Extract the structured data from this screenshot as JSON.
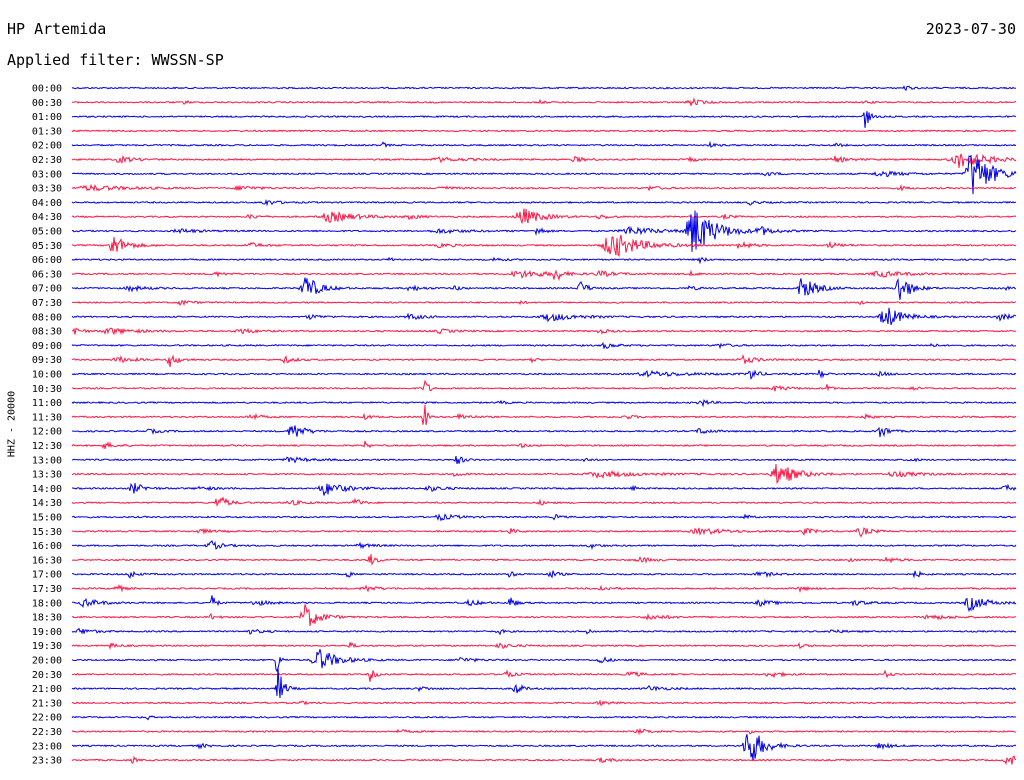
{
  "header": {
    "station": "HP Artemida",
    "date": "2023-07-30",
    "filter_text": "Applied filter: WWSSN-SP"
  },
  "chart_data": {
    "type": "line",
    "title": "HP Artemida",
    "ylabel": "HHZ - 20000",
    "colors": [
      "#0000e6",
      "#ff1744"
    ],
    "rows": [
      {
        "label": "00:00",
        "events": [
          [
            905,
            3,
            4
          ]
        ]
      },
      {
        "label": "00:30",
        "events": [
          [
            690,
            4,
            8
          ],
          [
            185,
            2,
            3
          ],
          [
            540,
            1.5,
            4
          ],
          [
            865,
            1.5,
            4
          ]
        ]
      },
      {
        "label": "01:00",
        "events": [
          [
            865,
            14,
            3
          ]
        ]
      },
      {
        "label": "01:30",
        "events": []
      },
      {
        "label": "02:00",
        "events": [
          [
            383,
            2.5,
            3
          ],
          [
            710,
            2,
            5
          ],
          [
            835,
            2,
            5
          ]
        ]
      },
      {
        "label": "02:30",
        "events": [
          [
            120,
            3,
            12
          ],
          [
            440,
            2,
            20
          ],
          [
            575,
            2.5,
            8
          ],
          [
            690,
            2,
            6
          ],
          [
            835,
            3,
            10
          ],
          [
            960,
            8,
            22
          ]
        ]
      },
      {
        "label": "03:00",
        "events": [
          [
            972,
            26,
            14
          ],
          [
            765,
            2,
            8
          ],
          [
            880,
            3,
            15
          ]
        ]
      },
      {
        "label": "03:30",
        "events": [
          [
            90,
            2.5,
            30
          ],
          [
            240,
            2.5,
            12
          ],
          [
            440,
            2,
            10
          ],
          [
            650,
            2,
            8
          ],
          [
            900,
            2,
            6
          ]
        ]
      },
      {
        "label": "04:00",
        "events": [
          [
            265,
            2.5,
            10
          ],
          [
            750,
            2,
            6
          ]
        ]
      },
      {
        "label": "04:30",
        "events": [
          [
            330,
            5,
            22
          ],
          [
            522,
            9,
            14
          ],
          [
            250,
            2,
            8
          ],
          [
            410,
            2,
            8
          ],
          [
            600,
            2,
            8
          ],
          [
            725,
            2,
            6
          ]
        ]
      },
      {
        "label": "05:00",
        "events": [
          [
            693,
            26,
            16
          ],
          [
            537,
            6,
            4
          ],
          [
            630,
            4,
            22
          ],
          [
            760,
            4,
            10
          ],
          [
            180,
            2,
            15
          ],
          [
            440,
            2,
            20
          ]
        ]
      },
      {
        "label": "05:30",
        "events": [
          [
            113,
            11,
            10
          ],
          [
            612,
            14,
            20
          ],
          [
            740,
            4,
            8
          ],
          [
            250,
            2.5,
            10
          ],
          [
            440,
            2,
            10
          ],
          [
            830,
            2.5,
            10
          ]
        ]
      },
      {
        "label": "06:00",
        "events": [
          [
            390,
            3,
            3
          ],
          [
            700,
            2.5,
            5
          ],
          [
            495,
            2,
            6
          ]
        ]
      },
      {
        "label": "06:30",
        "events": [
          [
            555,
            9,
            4
          ],
          [
            520,
            3.5,
            25
          ],
          [
            600,
            2.5,
            12
          ],
          [
            880,
            3,
            20
          ],
          [
            690,
            2,
            6
          ],
          [
            215,
            2,
            8
          ]
        ]
      },
      {
        "label": "07:00",
        "events": [
          [
            305,
            14,
            10
          ],
          [
            802,
            11,
            11
          ],
          [
            899,
            16,
            8
          ],
          [
            580,
            8,
            5
          ],
          [
            410,
            3,
            8
          ],
          [
            455,
            3,
            4
          ],
          [
            130,
            2.5,
            12
          ],
          [
            690,
            2,
            6
          ],
          [
            1005,
            2,
            4
          ]
        ]
      },
      {
        "label": "07:30",
        "events": [
          [
            180,
            2.5,
            8
          ],
          [
            520,
            1.5,
            4
          ],
          [
            860,
            1.5,
            4
          ]
        ]
      },
      {
        "label": "08:00",
        "events": [
          [
            885,
            12,
            12
          ],
          [
            550,
            4,
            20
          ],
          [
            410,
            3,
            10
          ],
          [
            1000,
            3,
            10
          ],
          [
            310,
            2,
            10
          ]
        ]
      },
      {
        "label": "08:30",
        "events": [
          [
            75,
            5,
            5
          ],
          [
            110,
            3,
            20
          ],
          [
            240,
            3,
            10
          ],
          [
            440,
            2,
            10
          ],
          [
            600,
            2,
            8
          ]
        ]
      },
      {
        "label": "09:00",
        "events": [
          [
            605,
            3,
            8
          ],
          [
            930,
            4,
            3
          ],
          [
            720,
            2,
            8
          ]
        ]
      },
      {
        "label": "09:30",
        "events": [
          [
            118,
            3,
            12
          ],
          [
            170,
            7,
            6
          ],
          [
            285,
            3,
            8
          ],
          [
            533,
            4,
            2
          ],
          [
            743,
            4,
            10
          ]
        ]
      },
      {
        "label": "10:00",
        "events": [
          [
            750,
            7,
            5
          ],
          [
            820,
            6,
            3
          ],
          [
            650,
            2.5,
            30
          ],
          [
            880,
            2,
            8
          ]
        ]
      },
      {
        "label": "10:30",
        "events": [
          [
            425,
            10,
            3
          ],
          [
            827,
            4,
            3
          ],
          [
            775,
            2.5,
            10
          ],
          [
            910,
            2,
            6
          ]
        ]
      },
      {
        "label": "11:00",
        "events": [
          [
            700,
            4,
            6
          ],
          [
            500,
            1.5,
            5
          ]
        ]
      },
      {
        "label": "11:30",
        "events": [
          [
            424,
            22,
            2
          ],
          [
            460,
            3,
            8
          ],
          [
            250,
            3,
            8
          ],
          [
            365,
            2.5,
            5
          ],
          [
            625,
            2,
            8
          ],
          [
            865,
            3,
            5
          ]
        ]
      },
      {
        "label": "12:00",
        "events": [
          [
            292,
            10,
            8
          ],
          [
            880,
            7,
            6
          ],
          [
            700,
            3,
            8
          ],
          [
            150,
            2,
            8
          ]
        ]
      },
      {
        "label": "12:30",
        "events": [
          [
            105,
            3,
            8
          ],
          [
            365,
            4,
            3
          ],
          [
            520,
            2,
            6
          ]
        ]
      },
      {
        "label": "13:00",
        "events": [
          [
            457,
            5,
            5
          ],
          [
            290,
            2.5,
            15
          ],
          [
            585,
            3,
            3
          ],
          [
            910,
            2.5,
            4
          ]
        ]
      },
      {
        "label": "13:30",
        "events": [
          [
            778,
            12,
            14
          ],
          [
            600,
            3,
            30
          ],
          [
            455,
            2.5,
            5
          ],
          [
            895,
            2.5,
            20
          ]
        ]
      },
      {
        "label": "14:00",
        "events": [
          [
            133,
            6,
            8
          ],
          [
            325,
            7,
            14
          ],
          [
            430,
            2.5,
            12
          ],
          [
            632,
            3,
            3
          ],
          [
            1005,
            4,
            6
          ],
          [
            200,
            2,
            10
          ]
        ]
      },
      {
        "label": "14:30",
        "events": [
          [
            218,
            8,
            7
          ],
          [
            355,
            5,
            5
          ],
          [
            290,
            2.5,
            10
          ],
          [
            540,
            2,
            6
          ]
        ]
      },
      {
        "label": "15:00",
        "events": [
          [
            440,
            3,
            12
          ],
          [
            555,
            3,
            4
          ],
          [
            745,
            3,
            3
          ]
        ]
      },
      {
        "label": "15:30",
        "events": [
          [
            510,
            3,
            5
          ],
          [
            700,
            3,
            22
          ],
          [
            805,
            3,
            8
          ],
          [
            860,
            5,
            8
          ],
          [
            200,
            2,
            10
          ]
        ]
      },
      {
        "label": "16:00",
        "events": [
          [
            210,
            5,
            8
          ],
          [
            590,
            2.5,
            6
          ],
          [
            360,
            2,
            10
          ]
        ]
      },
      {
        "label": "16:30",
        "events": [
          [
            370,
            6,
            5
          ],
          [
            850,
            3,
            3
          ],
          [
            640,
            2.5,
            10
          ],
          [
            885,
            2.5,
            10
          ]
        ]
      },
      {
        "label": "17:00",
        "events": [
          [
            130,
            4,
            5
          ],
          [
            348,
            4,
            2
          ],
          [
            510,
            4,
            3
          ],
          [
            550,
            5,
            5
          ],
          [
            915,
            4,
            4
          ],
          [
            760,
            2.5,
            10
          ]
        ]
      },
      {
        "label": "17:30",
        "events": [
          [
            115,
            5,
            5
          ],
          [
            365,
            3,
            10
          ],
          [
            600,
            2.5,
            8
          ],
          [
            800,
            2.5,
            6
          ]
        ]
      },
      {
        "label": "18:00",
        "events": [
          [
            212,
            8,
            3
          ],
          [
            510,
            7,
            4
          ],
          [
            85,
            4,
            12
          ],
          [
            970,
            8,
            12
          ],
          [
            255,
            3,
            10
          ],
          [
            470,
            3,
            8
          ],
          [
            760,
            3,
            10
          ],
          [
            855,
            2.5,
            10
          ]
        ]
      },
      {
        "label": "18:30",
        "events": [
          [
            305,
            14,
            10
          ],
          [
            210,
            3,
            5
          ],
          [
            650,
            2.5,
            15
          ],
          [
            930,
            2.5,
            15
          ]
        ]
      },
      {
        "label": "19:00",
        "events": [
          [
            80,
            3,
            10
          ],
          [
            498,
            4,
            3
          ],
          [
            587,
            4,
            3
          ],
          [
            250,
            2,
            10
          ],
          [
            830,
            2,
            8
          ]
        ]
      },
      {
        "label": "19:30",
        "events": [
          [
            110,
            2.5,
            6
          ],
          [
            350,
            3,
            4
          ],
          [
            500,
            2.5,
            10
          ],
          [
            800,
            2,
            6
          ]
        ]
      },
      {
        "label": "20:00",
        "events": [
          [
            277,
            16,
            2
          ],
          [
            318,
            12,
            14
          ],
          [
            600,
            4,
            6
          ],
          [
            460,
            2.5,
            10
          ]
        ]
      },
      {
        "label": "20:30",
        "events": [
          [
            370,
            7,
            4
          ],
          [
            505,
            4,
            6
          ],
          [
            630,
            3,
            8
          ],
          [
            770,
            3,
            10
          ],
          [
            885,
            3,
            4
          ]
        ]
      },
      {
        "label": "21:00",
        "events": [
          [
            278,
            22,
            4
          ],
          [
            515,
            7,
            5
          ],
          [
            650,
            2.5,
            12
          ],
          [
            420,
            2,
            8
          ]
        ]
      },
      {
        "label": "21:30",
        "events": [
          [
            600,
            2,
            8
          ],
          [
            300,
            1.5,
            6
          ]
        ]
      },
      {
        "label": "22:00",
        "events": [
          [
            148,
            3,
            2
          ]
        ]
      },
      {
        "label": "22:30",
        "events": [
          [
            748,
            3,
            3
          ],
          [
            400,
            1.5,
            8
          ],
          [
            640,
            2,
            10
          ]
        ]
      },
      {
        "label": "23:00",
        "events": [
          [
            748,
            24,
            10
          ],
          [
            880,
            3,
            8
          ],
          [
            200,
            2,
            6
          ]
        ]
      },
      {
        "label": "23:30",
        "events": [
          [
            133,
            4,
            2
          ],
          [
            1008,
            7,
            8
          ],
          [
            600,
            2,
            10
          ]
        ]
      }
    ]
  }
}
